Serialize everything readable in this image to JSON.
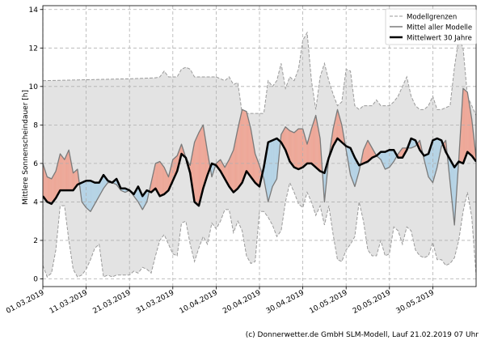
{
  "chart_data": {
    "type": "line",
    "ylabel": "Mittlere Sonnenscheindauer [h]",
    "xlabel": "",
    "ylim": [
      -0.4,
      14.2
    ],
    "yticks": [
      0,
      2,
      4,
      6,
      8,
      10,
      12,
      14
    ],
    "grid": true,
    "legend_position": "top-right",
    "legend": {
      "band": "Modellgrenzen",
      "models": "Mittel aller Modelle",
      "climate": "Mittelwert 30 Jahre"
    },
    "x_day_range": [
      0,
      100
    ],
    "xtick_days": [
      0,
      10,
      20,
      30,
      40,
      50,
      60,
      70,
      80,
      90
    ],
    "xtick_labels": [
      "01.03.2019",
      "11.03.2019",
      "21.03.2019",
      "31.03.2019",
      "10.04.2019",
      "20.04.2019",
      "30.04.2019",
      "10.05.2019",
      "20.05.2019",
      "30.05.2019"
    ],
    "credit": "(c) Donnerwetter.de GmbH SLM-Modell, Lauf 21.02.2019 07 Uhr",
    "colors": {
      "band_fill": "#e3e3e3",
      "band_edge": "#9a9a9a",
      "above_fill": "#eea898",
      "below_fill": "#b6d4e6",
      "model_line": "#7a7a7a",
      "climate_line": "#000000"
    },
    "series": [
      {
        "name": "Modellgrenzen (oben)",
        "days": [
          0,
          10,
          20,
          26,
          27,
          28,
          29,
          31,
          32,
          33,
          34,
          35,
          40,
          42,
          43,
          44,
          45,
          46,
          47,
          48,
          49,
          50,
          51,
          52,
          53,
          54,
          55,
          56,
          57,
          58,
          59,
          60,
          61,
          62,
          63,
          64,
          65,
          66,
          67,
          68,
          69,
          70,
          71,
          72,
          73,
          74,
          75,
          76,
          77,
          78,
          79,
          80,
          81,
          82,
          83,
          84,
          85,
          86,
          87,
          88,
          89,
          90,
          91,
          92,
          93,
          94,
          95,
          96,
          97,
          98,
          99,
          100
        ],
        "values": [
          10.3,
          10.35,
          10.4,
          10.45,
          10.5,
          10.8,
          10.5,
          10.5,
          10.9,
          11.0,
          10.9,
          10.5,
          10.5,
          10.3,
          10.5,
          10.1,
          10.2,
          8.6,
          8.6,
          8.6,
          8.6,
          8.6,
          8.6,
          10.3,
          10.0,
          10.3,
          11.2,
          9.9,
          10.5,
          10.3,
          10.9,
          12.4,
          12.8,
          10.3,
          8.8,
          10.5,
          11.2,
          10.3,
          9.6,
          9.0,
          9.2,
          10.9,
          10.8,
          9.0,
          8.8,
          9.0,
          9.0,
          9.0,
          9.3,
          9.0,
          9.0,
          9.0,
          9.2,
          9.5,
          10.0,
          10.5,
          9.5,
          9.0,
          8.8,
          8.8,
          9.0,
          9.5,
          8.8,
          8.8,
          8.9,
          9.0,
          11.0,
          12.5,
          12.0,
          9.5,
          9.0,
          8.5
        ]
      },
      {
        "name": "Modellgrenzen (unten)",
        "days": [
          0,
          1,
          2,
          3,
          4,
          5,
          6,
          7,
          8,
          9,
          10,
          11,
          12,
          13,
          14,
          15,
          16,
          17,
          18,
          19,
          20,
          21,
          22,
          23,
          24,
          25,
          26,
          27,
          28,
          29,
          30,
          31,
          32,
          33,
          34,
          35,
          36,
          37,
          38,
          39,
          40,
          41,
          42,
          43,
          44,
          45,
          46,
          47,
          48,
          49,
          50,
          51,
          52,
          53,
          54,
          55,
          56,
          57,
          58,
          59,
          60,
          61,
          62,
          63,
          64,
          65,
          66,
          67,
          68,
          69,
          70,
          71,
          72,
          73,
          74,
          75,
          76,
          77,
          78,
          79,
          80,
          81,
          82,
          83,
          84,
          85,
          86,
          87,
          88,
          89,
          90,
          91,
          92,
          93,
          94,
          95,
          96,
          97,
          98,
          99,
          100
        ],
        "values": [
          0.7,
          0.1,
          0.3,
          1.5,
          3.8,
          3.8,
          2.0,
          0.5,
          0.1,
          0.2,
          0.5,
          1.0,
          1.6,
          1.8,
          0.1,
          0.2,
          0.1,
          0.2,
          0.2,
          0.2,
          0.2,
          0.4,
          0.3,
          0.6,
          0.5,
          0.3,
          1.2,
          2.0,
          2.3,
          1.8,
          1.3,
          1.2,
          2.9,
          3.0,
          1.8,
          0.9,
          1.6,
          2.2,
          1.8,
          2.9,
          2.6,
          3.0,
          3.6,
          3.6,
          2.4,
          3.0,
          2.5,
          1.2,
          0.8,
          0.9,
          3.5,
          3.5,
          3.2,
          2.8,
          2.2,
          2.5,
          4.0,
          5.0,
          4.5,
          3.9,
          3.7,
          4.5,
          4.0,
          3.3,
          3.8,
          2.8,
          3.8,
          2.3,
          1.0,
          0.9,
          1.5,
          1.8,
          2.2,
          4.0,
          3.0,
          1.5,
          1.2,
          1.2,
          2.0,
          1.2,
          1.3,
          2.7,
          2.5,
          1.8,
          2.7,
          2.5,
          1.5,
          1.2,
          1.1,
          1.2,
          1.9,
          1.0,
          1.0,
          0.7,
          0.8,
          1.1,
          2.0,
          3.5,
          4.5,
          3.2,
          0.2
        ]
      },
      {
        "name": "Mittel aller Modelle",
        "days": [
          0,
          1,
          2,
          3,
          4,
          5,
          6,
          7,
          8,
          9,
          10,
          11,
          12,
          13,
          14,
          15,
          16,
          17,
          18,
          19,
          20,
          21,
          22,
          23,
          24,
          25,
          26,
          27,
          28,
          29,
          30,
          31,
          32,
          33,
          34,
          35,
          36,
          37,
          38,
          39,
          40,
          41,
          42,
          43,
          44,
          45,
          46,
          47,
          48,
          49,
          50,
          51,
          52,
          53,
          54,
          55,
          56,
          57,
          58,
          59,
          60,
          61,
          62,
          63,
          64,
          65,
          66,
          67,
          68,
          69,
          70,
          71,
          72,
          73,
          74,
          75,
          76,
          77,
          78,
          79,
          80,
          81,
          82,
          83,
          84,
          85,
          86,
          87,
          88,
          89,
          90,
          91,
          92,
          93,
          94,
          95,
          96,
          97,
          98,
          99,
          100
        ],
        "values": [
          6.0,
          5.3,
          5.2,
          5.6,
          6.5,
          6.2,
          6.7,
          5.5,
          5.7,
          4.0,
          3.7,
          3.5,
          3.9,
          4.3,
          4.7,
          5.0,
          5.0,
          4.9,
          4.6,
          4.5,
          4.6,
          4.3,
          4.0,
          3.6,
          4.0,
          5.0,
          6.0,
          6.1,
          5.8,
          5.3,
          6.2,
          6.4,
          7.0,
          6.3,
          5.9,
          7.1,
          7.6,
          8.0,
          6.6,
          5.3,
          6.0,
          6.2,
          5.8,
          6.2,
          6.7,
          7.8,
          8.8,
          8.7,
          7.8,
          6.5,
          5.9,
          5.2,
          4.0,
          4.8,
          5.2,
          7.5,
          7.9,
          7.7,
          7.6,
          7.8,
          7.8,
          7.0,
          7.8,
          8.5,
          7.3,
          4.0,
          6.3,
          7.8,
          8.8,
          8.0,
          6.7,
          5.4,
          4.8,
          5.6,
          6.7,
          7.2,
          6.8,
          6.4,
          6.2,
          5.7,
          5.8,
          6.1,
          6.5,
          6.8,
          6.8,
          6.8,
          6.9,
          7.2,
          6.2,
          5.3,
          5.0,
          5.8,
          6.9,
          7.2,
          5.0,
          2.8,
          6.2,
          9.9,
          9.7,
          8.3,
          6.3
        ]
      },
      {
        "name": "Mittelwert 30 Jahre",
        "days": [
          0,
          1,
          2,
          3,
          4,
          5,
          6,
          7,
          8,
          9,
          10,
          11,
          12,
          13,
          14,
          15,
          16,
          17,
          18,
          19,
          20,
          21,
          22,
          23,
          24,
          25,
          26,
          27,
          28,
          29,
          30,
          31,
          32,
          33,
          34,
          35,
          36,
          37,
          38,
          39,
          40,
          41,
          42,
          43,
          44,
          45,
          46,
          47,
          48,
          49,
          50,
          51,
          52,
          53,
          54,
          55,
          56,
          57,
          58,
          59,
          60,
          61,
          62,
          63,
          64,
          65,
          66,
          67,
          68,
          69,
          70,
          71,
          72,
          73,
          74,
          75,
          76,
          77,
          78,
          79,
          80,
          81,
          82,
          83,
          84,
          85,
          86,
          87,
          88,
          89,
          90,
          91,
          92,
          93,
          94,
          95,
          96,
          97,
          98,
          99,
          100
        ],
        "values": [
          4.3,
          4.0,
          3.9,
          4.2,
          4.6,
          4.6,
          4.6,
          4.6,
          4.9,
          5.0,
          5.1,
          5.1,
          5.0,
          5.0,
          5.4,
          5.1,
          5.0,
          5.2,
          4.7,
          4.7,
          4.6,
          4.4,
          4.8,
          4.3,
          4.6,
          4.5,
          4.7,
          4.3,
          4.4,
          4.6,
          5.1,
          5.6,
          6.5,
          6.3,
          5.5,
          4.0,
          3.8,
          4.7,
          5.4,
          6.0,
          5.9,
          5.6,
          5.2,
          4.8,
          4.5,
          4.7,
          5.0,
          5.6,
          5.3,
          5.0,
          4.8,
          5.8,
          7.1,
          7.2,
          7.3,
          7.1,
          6.7,
          6.1,
          5.8,
          5.7,
          5.8,
          6.0,
          6.0,
          5.8,
          5.6,
          5.5,
          6.3,
          6.9,
          7.3,
          7.1,
          6.9,
          6.8,
          6.3,
          5.9,
          6.0,
          6.1,
          6.3,
          6.4,
          6.6,
          6.6,
          6.7,
          6.7,
          6.3,
          6.3,
          6.7,
          7.3,
          7.2,
          6.7,
          6.4,
          6.5,
          7.2,
          7.3,
          7.2,
          6.6,
          6.2,
          5.8,
          6.1,
          6.0,
          6.6,
          6.4,
          6.1
        ]
      }
    ]
  }
}
